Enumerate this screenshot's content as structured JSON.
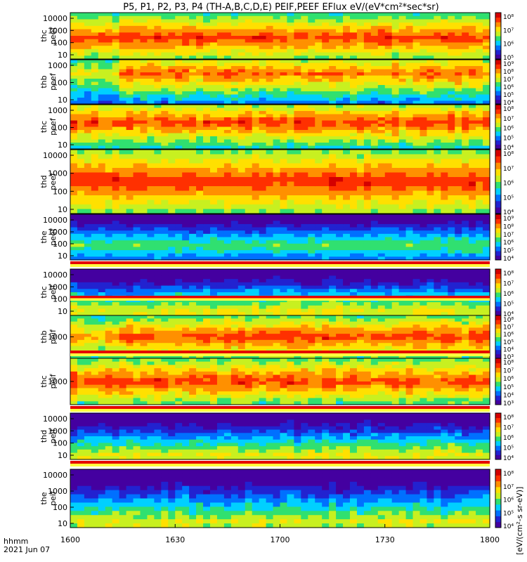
{
  "title": "P5, P1, P2, P3, P4 (TH-A,B,C,D,E) PEIF,PEEF EFlux eV/(eV*cm²*sec*sr)",
  "footer": {
    "label_line1": "hhmm",
    "label_line2": "2021 Jun 07"
  },
  "x_ticks": [
    "1600",
    "1630",
    "1700",
    "1730",
    "1800"
  ],
  "colorbar_label": "[eV/(cm²-s sr-eV)]",
  "colormap": [
    "#4400a0",
    "#2222d0",
    "#0070ff",
    "#00d0ff",
    "#30e070",
    "#c8f020",
    "#ffe000",
    "#ff9000",
    "#ff3000",
    "#d40000"
  ],
  "chart_data": {
    "type": "heatmap",
    "time_axis": {
      "start": "1600",
      "end": "1800",
      "unit": "hhmm",
      "date": "2021 Jun 07"
    },
    "panels": [
      {
        "name": "thc peef",
        "ylabel": [
          "thc",
          "peef"
        ],
        "yticks": [
          "10000",
          "1000",
          "100",
          "10"
        ],
        "colorbar_ticks": [
          "10⁸",
          "10⁷",
          "10⁶",
          "10⁵"
        ],
        "level": 0.85,
        "peak": 0.55,
        "noise": 0.08
      },
      {
        "name": "thb peef",
        "ylabel": [
          "thb",
          "peef"
        ],
        "yticks": [
          "1000",
          "100",
          "10"
        ],
        "colorbar_ticks": [
          "10⁹",
          "10⁸",
          "10⁷",
          "10⁶",
          "10⁵",
          "10⁴"
        ],
        "level": 0.8,
        "peak": 0.3,
        "noise": 0.1,
        "early_low": 0.22
      },
      {
        "name": "thc peef",
        "ylabel": [
          "thc",
          "peef"
        ],
        "yticks": [
          "1000",
          "100",
          "10"
        ],
        "colorbar_ticks": [
          "10⁸",
          "10⁷",
          "10⁶",
          "10⁵",
          "10⁴"
        ],
        "level": 0.85,
        "peak": 0.4,
        "noise": 0.1
      },
      {
        "name": "thd peef",
        "ylabel": [
          "thd",
          "peef"
        ],
        "yticks": [
          "10000",
          "1000",
          "100",
          "10"
        ],
        "colorbar_ticks": [
          "10⁸",
          "10⁷",
          "10⁶",
          "10⁵",
          "10⁴"
        ],
        "level": 0.88,
        "peak": 0.5,
        "noise": 0.07
      },
      {
        "name": "the peef",
        "ylabel": [
          "the",
          "peef"
        ],
        "yticks": [
          "10000",
          "1000",
          "100",
          "10"
        ],
        "colorbar_ticks": [
          "10⁹",
          "10⁸",
          "10⁷",
          "10⁶",
          "10⁵",
          "10⁴"
        ],
        "level": 0.48,
        "peak": 0.7,
        "noise": 0.07
      },
      {
        "name": "thc peif",
        "ylabel": [
          "thc",
          "peif"
        ],
        "yticks": [
          "10000",
          "1000",
          "100",
          "10"
        ],
        "colorbar_ticks": [
          "10⁸",
          "10⁷",
          "10⁶",
          "10⁵",
          "10⁴"
        ],
        "level": 0.62,
        "peak": 0.95,
        "noise": 0.1
      },
      {
        "name": "thb peif",
        "ylabel": [
          "thb",
          "peif"
        ],
        "yticks": [
          "1000"
        ],
        "colorbar_ticks": [
          "10⁸",
          "10⁷",
          "10⁶",
          "10⁵",
          "10⁴",
          "10³"
        ],
        "level": 0.85,
        "peak": 0.5,
        "noise": 0.1,
        "early_low": 0.15
      },
      {
        "name": "thc peif",
        "ylabel": [
          "thc",
          "peif"
        ],
        "yticks": [
          "1000"
        ],
        "colorbar_ticks": [
          "10⁸",
          "10⁷",
          "10⁶",
          "10⁵",
          "10⁴",
          "10³"
        ],
        "level": 0.85,
        "peak": 0.5,
        "noise": 0.1
      },
      {
        "name": "thd peif",
        "ylabel": [
          "thd",
          "peif"
        ],
        "yticks": [
          "10000",
          "1000",
          "100",
          "10"
        ],
        "colorbar_ticks": [
          "10⁸",
          "10⁷",
          "10⁶",
          "10⁵",
          "10⁴"
        ],
        "level": 0.62,
        "peak": 0.95,
        "noise": 0.1
      },
      {
        "name": "the peif",
        "ylabel": [
          "the",
          "peif"
        ],
        "yticks": [
          "10000",
          "1000",
          "100",
          "10"
        ],
        "colorbar_ticks": [
          "10⁸",
          "10⁷",
          "10⁶",
          "10⁵",
          "10⁴"
        ],
        "level": 0.6,
        "peak": 0.95,
        "noise": 0.1
      }
    ]
  }
}
